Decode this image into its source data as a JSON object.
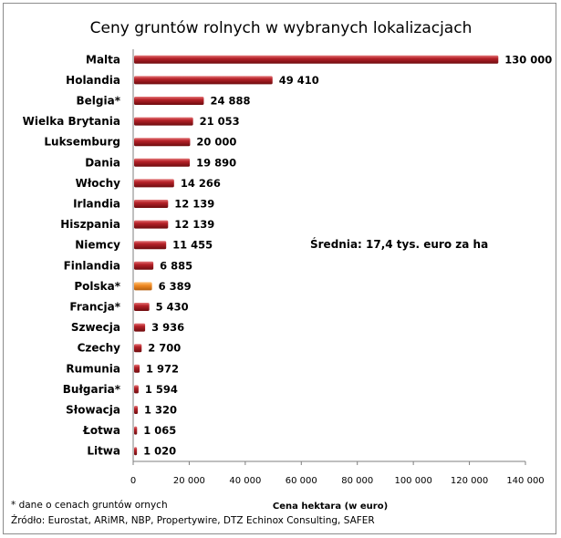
{
  "chart_data": {
    "type": "bar",
    "orientation": "horizontal",
    "title": "Ceny gruntów rolnych w wybranych lokalizacjach",
    "xlabel": "Cena hektara (w euro)",
    "ylabel": "",
    "xlim": [
      0,
      140000
    ],
    "x_ticks": [
      "0",
      "20 000",
      "40 000",
      "60 000",
      "80 000",
      "100 000",
      "120 000",
      "140 000"
    ],
    "categories": [
      "Malta",
      "Holandia",
      "Belgia*",
      "Wielka Brytania",
      "Luksemburg",
      "Dania",
      "Włochy",
      "Irlandia",
      "Hiszpania",
      "Niemcy",
      "Finlandia",
      "Polska*",
      "Francja*",
      "Szwecja",
      "Czechy",
      "Rumunia",
      "Bułgaria*",
      "Słowacja",
      "Łotwa",
      "Litwa"
    ],
    "values": [
      130000,
      49410,
      24888,
      21053,
      20000,
      19890,
      14266,
      12139,
      12139,
      11455,
      6885,
      6389,
      5430,
      3936,
      2700,
      1972,
      1594,
      1320,
      1065,
      1020
    ],
    "value_labels": [
      "130 000",
      "49 410",
      "24 888",
      "21 053",
      "20 000",
      "19 890",
      "14 266",
      "12 139",
      "12 139",
      "11 455",
      "6 885",
      "6 389",
      "5 430",
      "3 936",
      "2 700",
      "1 972",
      "1 594",
      "1 320",
      "1 065",
      "1 020"
    ],
    "highlight_category": "Polska*",
    "bar_color": "#a3161a",
    "highlight_color": "#f08a24",
    "grid": false,
    "legend": "none",
    "annotation": "Średnia:  17,4 tys. euro za ha"
  },
  "notes": {
    "footnote": "* dane o cenach gruntów ornych",
    "source": "Źródło: Eurostat, ARiMR, NBP, Propertywire, DTZ Echinox Consulting, SAFER"
  }
}
